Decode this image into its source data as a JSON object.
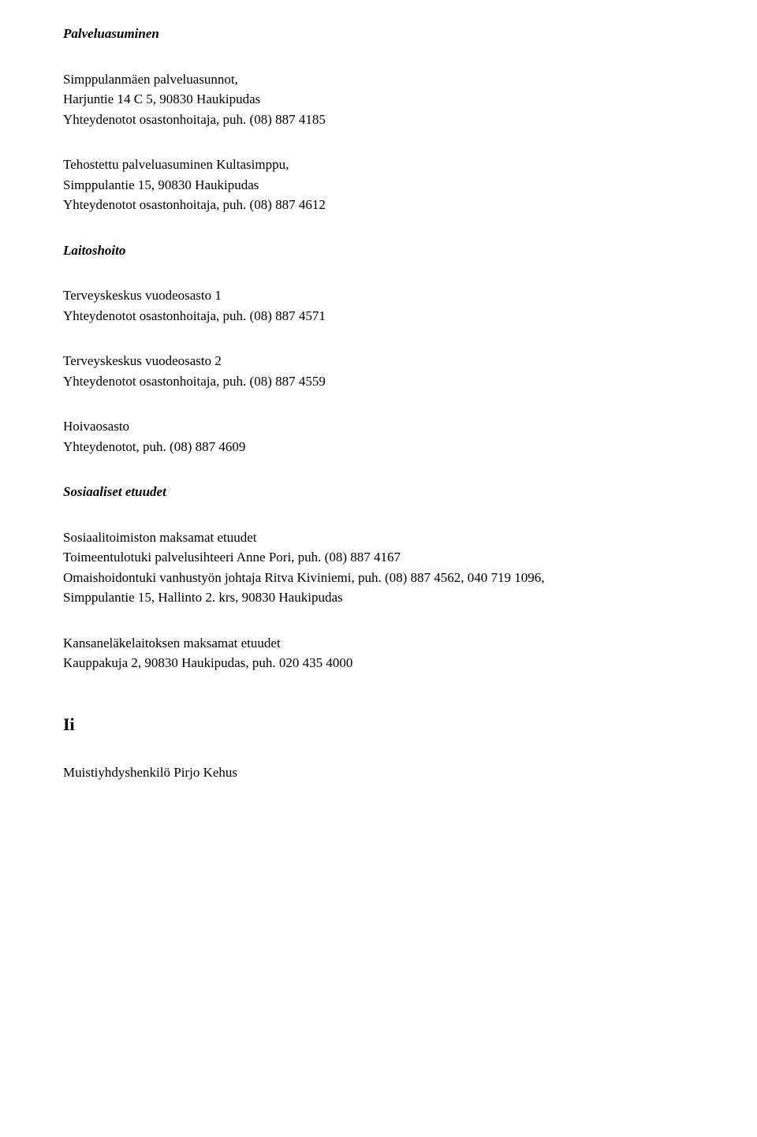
{
  "font": {
    "family": "Georgia, 'Times New Roman', serif",
    "body_size": 17,
    "big_heading_size": 22,
    "color": "#000000",
    "background": "#ffffff"
  },
  "sections": {
    "palveluasuminen": {
      "heading": "Palveluasuminen",
      "block1": {
        "line1": "Simppulanmäen palveluasunnot,",
        "line2": "Harjuntie 14 C 5, 90830 Haukipudas",
        "line3": "Yhteydenotot osastonhoitaja, puh. (08) 887 4185"
      },
      "block2": {
        "line1": "Tehostettu palveluasuminen Kultasimppu,",
        "line2": "Simppulantie 15, 90830 Haukipudas",
        "line3": "Yhteydenotot osastonhoitaja, puh. (08) 887 4612"
      }
    },
    "laitoshoito": {
      "heading": "Laitoshoito",
      "block1": {
        "line1": "Terveyskeskus vuodeosasto 1",
        "line2": "Yhteydenotot osastonhoitaja, puh. (08) 887 4571"
      },
      "block2": {
        "line1": "Terveyskeskus vuodeosasto 2",
        "line2": "Yhteydenotot osastonhoitaja, puh. (08) 887 4559"
      },
      "block3": {
        "line1": "Hoivaosasto",
        "line2": "Yhteydenotot, puh. (08) 887 4609"
      }
    },
    "sosiaaliset": {
      "heading": "Sosiaaliset etuudet",
      "block1": {
        "line1": "Sosiaalitoimiston maksamat etuudet",
        "line2": "Toimeentulotuki palvelusihteeri Anne Pori, puh. (08) 887 4167",
        "line3": "Omaishoidontuki vanhustyön johtaja Ritva Kiviniemi, puh. (08) 887 4562, 040 719 1096,",
        "line4": "Simppulantie 15, Hallinto 2. krs, 90830 Haukipudas"
      },
      "block2": {
        "line1": "Kansaneläkelaitoksen maksamat etuudet",
        "line2": "Kauppakuja 2, 90830 Haukipudas, puh. 020 435 4000"
      }
    },
    "ii": {
      "heading": "Ii",
      "block1": {
        "line1": "Muistiyhdyshenkilö Pirjo Kehus"
      }
    }
  }
}
